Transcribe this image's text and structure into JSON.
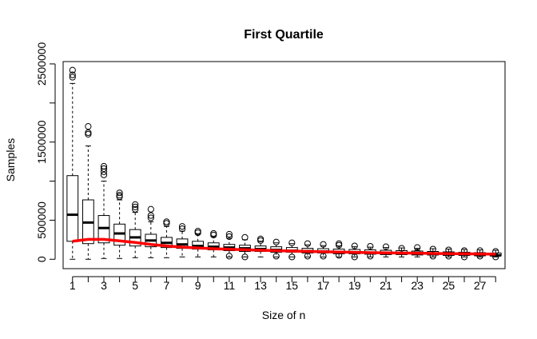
{
  "chart_data": {
    "type": "boxplot",
    "title": "First Quartile",
    "xlabel": "Size of n",
    "ylabel": "Samples",
    "x_tick_labels": [
      "1",
      "3",
      "5",
      "7",
      "9",
      "11",
      "13",
      "15",
      "17",
      "19",
      "21",
      "23",
      "25",
      "27"
    ],
    "y_tick_labels": [
      "0",
      "500000",
      "1500000",
      "2500000"
    ],
    "y_ticks": [
      0,
      500000,
      1000000,
      1500000,
      2000000,
      2500000
    ],
    "ylim": [
      -120000,
      2530000
    ],
    "xlim": [
      0.4,
      28.6
    ],
    "categories": [
      1,
      2,
      3,
      4,
      5,
      6,
      7,
      8,
      9,
      10,
      11,
      12,
      13,
      14,
      15,
      16,
      17,
      18,
      19,
      20,
      21,
      22,
      23,
      24,
      25,
      26,
      27,
      28
    ],
    "boxes": [
      {
        "lo": 0,
        "q1": 230000,
        "med": 570000,
        "q3": 1070000,
        "hi": 2250000,
        "out": [
          2330000,
          2360000,
          2420000
        ]
      },
      {
        "lo": 0,
        "q1": 200000,
        "med": 470000,
        "q3": 760000,
        "hi": 1450000,
        "out": [
          1600000,
          1620000,
          1700000
        ]
      },
      {
        "lo": 10000,
        "q1": 210000,
        "med": 400000,
        "q3": 560000,
        "hi": 1000000,
        "out": [
          1080000,
          1120000,
          1160000,
          1190000
        ]
      },
      {
        "lo": 10000,
        "q1": 180000,
        "med": 330000,
        "q3": 450000,
        "hi": 760000,
        "out": [
          800000,
          820000,
          850000
        ]
      },
      {
        "lo": 20000,
        "q1": 170000,
        "med": 280000,
        "q3": 380000,
        "hi": 600000,
        "out": [
          640000,
          670000,
          700000
        ]
      },
      {
        "lo": 20000,
        "q1": 160000,
        "med": 240000,
        "q3": 320000,
        "hi": 480000,
        "out": [
          530000,
          560000,
          640000
        ]
      },
      {
        "lo": 20000,
        "q1": 150000,
        "med": 210000,
        "q3": 280000,
        "hi": 420000,
        "out": [
          460000,
          480000
        ]
      },
      {
        "lo": 30000,
        "q1": 140000,
        "med": 190000,
        "q3": 260000,
        "hi": 360000,
        "out": [
          390000,
          420000
        ]
      },
      {
        "lo": 30000,
        "q1": 130000,
        "med": 170000,
        "q3": 230000,
        "hi": 320000,
        "out": [
          340000,
          360000
        ]
      },
      {
        "lo": 30000,
        "q1": 120000,
        "med": 160000,
        "q3": 210000,
        "hi": 290000,
        "out": [
          310000,
          330000
        ]
      },
      {
        "lo": 30000,
        "q1": 110000,
        "med": 150000,
        "q3": 190000,
        "hi": 270000,
        "out": [
          40000,
          290000,
          320000
        ]
      },
      {
        "lo": 30000,
        "q1": 100000,
        "med": 140000,
        "q3": 180000,
        "hi": 250000,
        "out": [
          30000,
          280000
        ]
      },
      {
        "lo": 30000,
        "q1": 100000,
        "med": 130000,
        "q3": 170000,
        "hi": 230000,
        "out": [
          240000,
          260000
        ]
      },
      {
        "lo": 30000,
        "q1": 90000,
        "med": 120000,
        "q3": 160000,
        "hi": 210000,
        "out": [
          40000,
          220000
        ]
      },
      {
        "lo": 30000,
        "q1": 90000,
        "med": 110000,
        "q3": 150000,
        "hi": 200000,
        "out": [
          30000,
          210000
        ]
      },
      {
        "lo": 30000,
        "q1": 80000,
        "med": 105000,
        "q3": 140000,
        "hi": 185000,
        "out": [
          40000,
          200000
        ]
      },
      {
        "lo": 30000,
        "q1": 80000,
        "med": 100000,
        "q3": 135000,
        "hi": 175000,
        "out": [
          40000,
          190000
        ]
      },
      {
        "lo": 30000,
        "q1": 70000,
        "med": 95000,
        "q3": 130000,
        "hi": 170000,
        "out": [
          50000,
          180000,
          200000
        ]
      },
      {
        "lo": 30000,
        "q1": 70000,
        "med": 90000,
        "q3": 125000,
        "hi": 160000,
        "out": [
          30000,
          170000
        ]
      },
      {
        "lo": 30000,
        "q1": 65000,
        "med": 85000,
        "q3": 120000,
        "hi": 155000,
        "out": [
          40000,
          165000
        ]
      },
      {
        "lo": 30000,
        "q1": 60000,
        "med": 80000,
        "q3": 115000,
        "hi": 150000,
        "out": [
          160000
        ]
      },
      {
        "lo": 30000,
        "q1": 60000,
        "med": 75000,
        "q3": 110000,
        "hi": 145000,
        "out": [
          140000
        ]
      },
      {
        "lo": 30000,
        "q1": 55000,
        "med": 70000,
        "q3": 105000,
        "hi": 140000,
        "out": [
          90000,
          150000
        ]
      },
      {
        "lo": 30000,
        "q1": 55000,
        "med": 65000,
        "q3": 100000,
        "hi": 135000,
        "out": [
          40000,
          130000
        ]
      },
      {
        "lo": 30000,
        "q1": 50000,
        "med": 60000,
        "q3": 95000,
        "hi": 130000,
        "out": [
          40000,
          120000
        ]
      },
      {
        "lo": 30000,
        "q1": 50000,
        "med": 60000,
        "q3": 90000,
        "hi": 125000,
        "out": [
          30000,
          110000
        ]
      },
      {
        "lo": 30000,
        "q1": 45000,
        "med": 55000,
        "q3": 85000,
        "hi": 120000,
        "out": [
          40000,
          110000
        ]
      },
      {
        "lo": 30000,
        "q1": 45000,
        "med": 50000,
        "q3": 80000,
        "hi": 115000,
        "out": [
          30000,
          100000
        ]
      }
    ],
    "line_values": [
      230000,
      255000,
      255000,
      235000,
      215000,
      190000,
      170000,
      155000,
      145000,
      135000,
      128000,
      122000,
      115000,
      110000,
      105000,
      100000,
      96000,
      92000,
      88000,
      85000,
      82000,
      80000,
      78000,
      75000,
      72000,
      70000,
      68000,
      66000
    ],
    "colors": {
      "line": "#ff0000",
      "axis": "#000000",
      "box": "#000000"
    },
    "grid": false,
    "legend": "none"
  }
}
